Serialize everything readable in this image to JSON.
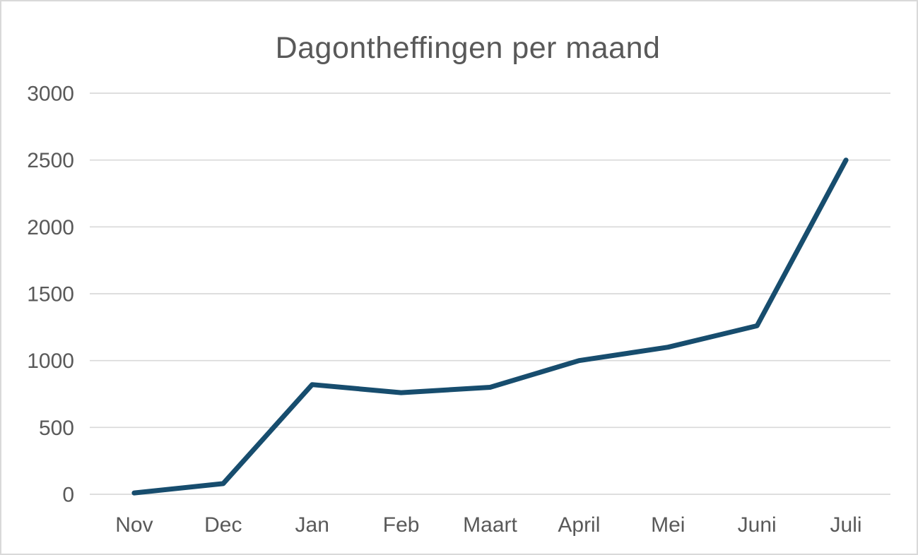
{
  "chart_data": {
    "type": "line",
    "title": "Dagontheffingen per maand",
    "categories": [
      "Nov",
      "Dec",
      "Jan",
      "Feb",
      "Maart",
      "April",
      "Mei",
      "Juni",
      "Juli"
    ],
    "values": [
      10,
      80,
      820,
      760,
      800,
      1000,
      1100,
      1260,
      2500
    ],
    "xlabel": "",
    "ylabel": "",
    "ylim": [
      0,
      3000
    ],
    "ytick_step": 500,
    "ytick_labels": [
      "0",
      "500",
      "1000",
      "1500",
      "2000",
      "2500",
      "3000"
    ],
    "grid": true,
    "legend": false,
    "legend_position": "none",
    "colors": {
      "line": "#174d6e",
      "gridline": "#d9d9d9",
      "text": "#595959",
      "background": "#ffffff",
      "border": "#d9d9d9"
    }
  }
}
